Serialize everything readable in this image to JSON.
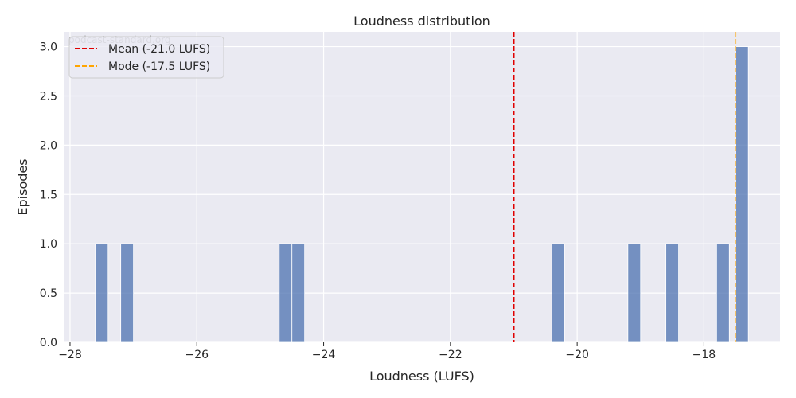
{
  "chart_data": {
    "type": "bar",
    "title": "Loudness distribution",
    "xlabel": "Loudness (LUFS)",
    "ylabel": "Episodes",
    "xlim": [
      -28.1,
      -16.8
    ],
    "ylim": [
      0,
      3.15
    ],
    "xticks": [
      -28,
      -26,
      -24,
      -22,
      -20,
      -18
    ],
    "yticks": [
      0.0,
      0.5,
      1.0,
      1.5,
      2.0,
      2.5,
      3.0
    ],
    "xtick_labels": [
      "−28",
      "−26",
      "−24",
      "−22",
      "−20",
      "−18"
    ],
    "ytick_labels": [
      "0.0",
      "0.5",
      "1.0",
      "1.5",
      "2.0",
      "2.5",
      "3.0"
    ],
    "bin_width": 0.2,
    "bins": [
      {
        "start": -27.6,
        "count": 1
      },
      {
        "start": -27.2,
        "count": 1
      },
      {
        "start": -24.7,
        "count": 1
      },
      {
        "start": -24.5,
        "count": 1
      },
      {
        "start": -20.4,
        "count": 1
      },
      {
        "start": -19.2,
        "count": 1
      },
      {
        "start": -18.6,
        "count": 1
      },
      {
        "start": -17.8,
        "count": 1
      },
      {
        "start": -17.5,
        "count": 3
      }
    ],
    "lines": [
      {
        "label": "Mean (-21.0 LUFS)",
        "x": -21.0,
        "color": "#e00000",
        "style": "dashed"
      },
      {
        "label": "Mode (-17.5 LUFS)",
        "x": -17.5,
        "color": "#ffa500",
        "style": "dashed"
      }
    ],
    "bar_color": "#4c72b0",
    "background": "#eaeaf2",
    "grid": true,
    "legend_position": "top-left",
    "watermark": "podcast-standard.org"
  }
}
